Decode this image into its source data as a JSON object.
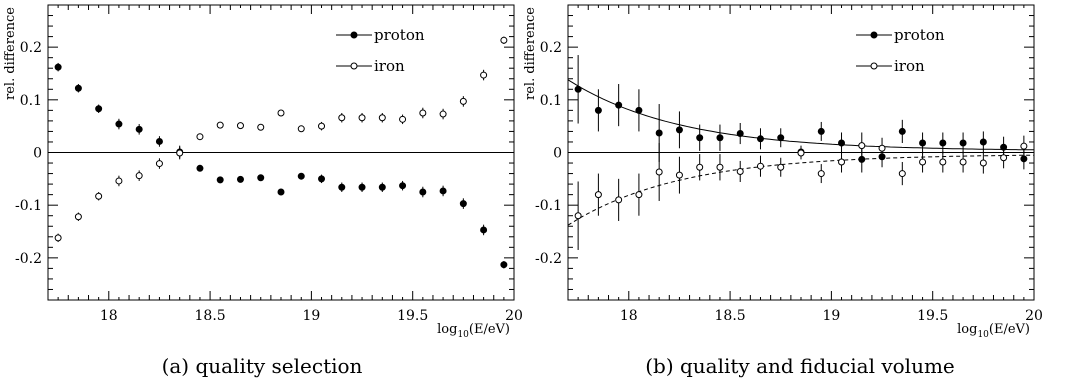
{
  "chart_data": [
    {
      "type": "scatter",
      "panel": "a",
      "caption": "(a) quality selection",
      "xlabel": {
        "prefix": "log",
        "sub": "10",
        "suffix": "(E/eV)"
      },
      "ylabel": "rel. difference",
      "xlim": [
        17.7,
        20.0
      ],
      "ylim": [
        -0.28,
        0.28
      ],
      "xticks": [
        18,
        18.5,
        19,
        19.5,
        20
      ],
      "xtick_labels": [
        "18",
        "18.5",
        "19",
        "19.5",
        "20"
      ],
      "yticks": [
        -0.2,
        -0.1,
        0,
        0.1,
        0.2
      ],
      "ytick_labels": [
        "-0.2",
        "-0.1",
        "0",
        "0.1",
        "0.2"
      ],
      "zero_line": true,
      "grid": false,
      "legend_position": "top-right",
      "x": [
        17.75,
        17.85,
        17.95,
        18.05,
        18.15,
        18.25,
        18.35,
        18.45,
        18.55,
        18.65,
        18.75,
        18.85,
        18.95,
        19.05,
        19.15,
        19.25,
        19.35,
        19.45,
        19.55,
        19.65,
        19.75,
        19.85,
        19.95
      ],
      "series": [
        {
          "name": "proton",
          "marker": "filled",
          "values": [
            0.162,
            0.122,
            0.083,
            0.054,
            0.044,
            0.021,
            0.001,
            -0.03,
            -0.052,
            -0.051,
            -0.048,
            -0.075,
            -0.045,
            -0.05,
            -0.066,
            -0.066,
            -0.066,
            -0.063,
            -0.075,
            -0.073,
            -0.097,
            -0.147,
            -0.213
          ],
          "errors": [
            0.008,
            0.008,
            0.008,
            0.01,
            0.01,
            0.01,
            0.012,
            0.006,
            0.006,
            0.005,
            0.006,
            0.005,
            0.006,
            0.008,
            0.009,
            0.009,
            0.009,
            0.009,
            0.01,
            0.01,
            0.01,
            0.01,
            0.007
          ]
        },
        {
          "name": "iron",
          "marker": "open",
          "values": [
            -0.162,
            -0.122,
            -0.083,
            -0.054,
            -0.044,
            -0.021,
            -0.001,
            0.03,
            0.052,
            0.051,
            0.048,
            0.075,
            0.045,
            0.05,
            0.066,
            0.066,
            0.066,
            0.063,
            0.075,
            0.073,
            0.097,
            0.147,
            0.213
          ]
        }
      ]
    },
    {
      "type": "scatter",
      "panel": "b",
      "caption": "(b) quality and fiducial volume",
      "xlabel": {
        "prefix": "log",
        "sub": "10",
        "suffix": "(E/eV)"
      },
      "ylabel": "rel. difference",
      "xlim": [
        17.7,
        20.0
      ],
      "ylim": [
        -0.28,
        0.28
      ],
      "xticks": [
        18,
        18.5,
        19,
        19.5,
        20
      ],
      "xtick_labels": [
        "18",
        "18.5",
        "19",
        "19.5",
        "20"
      ],
      "yticks": [
        -0.2,
        -0.1,
        0,
        0.1,
        0.2
      ],
      "ytick_labels": [
        "-0.2",
        "-0.1",
        "0",
        "0.1",
        "0.2"
      ],
      "zero_line": true,
      "grid": false,
      "legend_position": "top-right",
      "x": [
        17.75,
        17.85,
        17.95,
        18.05,
        18.15,
        18.25,
        18.35,
        18.45,
        18.55,
        18.65,
        18.75,
        18.85,
        18.95,
        19.05,
        19.15,
        19.25,
        19.35,
        19.45,
        19.55,
        19.65,
        19.75,
        19.85,
        19.95
      ],
      "series": [
        {
          "name": "proton",
          "marker": "filled",
          "values": [
            0.12,
            0.08,
            0.09,
            0.08,
            0.037,
            0.043,
            0.028,
            0.028,
            0.036,
            0.026,
            0.028,
            0.001,
            0.04,
            0.018,
            -0.013,
            -0.008,
            0.04,
            0.018,
            0.018,
            0.018,
            0.02,
            0.01,
            -0.012
          ],
          "errors": [
            0.065,
            0.04,
            0.04,
            0.04,
            0.055,
            0.035,
            0.025,
            0.025,
            0.02,
            0.02,
            0.018,
            0.012,
            0.018,
            0.02,
            0.025,
            0.02,
            0.022,
            0.02,
            0.02,
            0.02,
            0.02,
            0.02,
            0.02
          ]
        },
        {
          "name": "iron",
          "marker": "open",
          "values": [
            -0.12,
            -0.08,
            -0.09,
            -0.08,
            -0.037,
            -0.043,
            -0.028,
            -0.028,
            -0.036,
            -0.026,
            -0.028,
            -0.001,
            -0.04,
            -0.018,
            0.013,
            0.008,
            -0.04,
            -0.018,
            -0.018,
            -0.018,
            -0.02,
            -0.01,
            0.012
          ]
        }
      ],
      "fits": [
        {
          "series": "proton",
          "style": "solid",
          "amplitude": 0.135,
          "offset": 0.003,
          "decay": 0.55
        },
        {
          "series": "iron",
          "style": "dashed",
          "amplitude": -0.135,
          "offset": -0.003,
          "decay": 0.55
        }
      ]
    }
  ]
}
